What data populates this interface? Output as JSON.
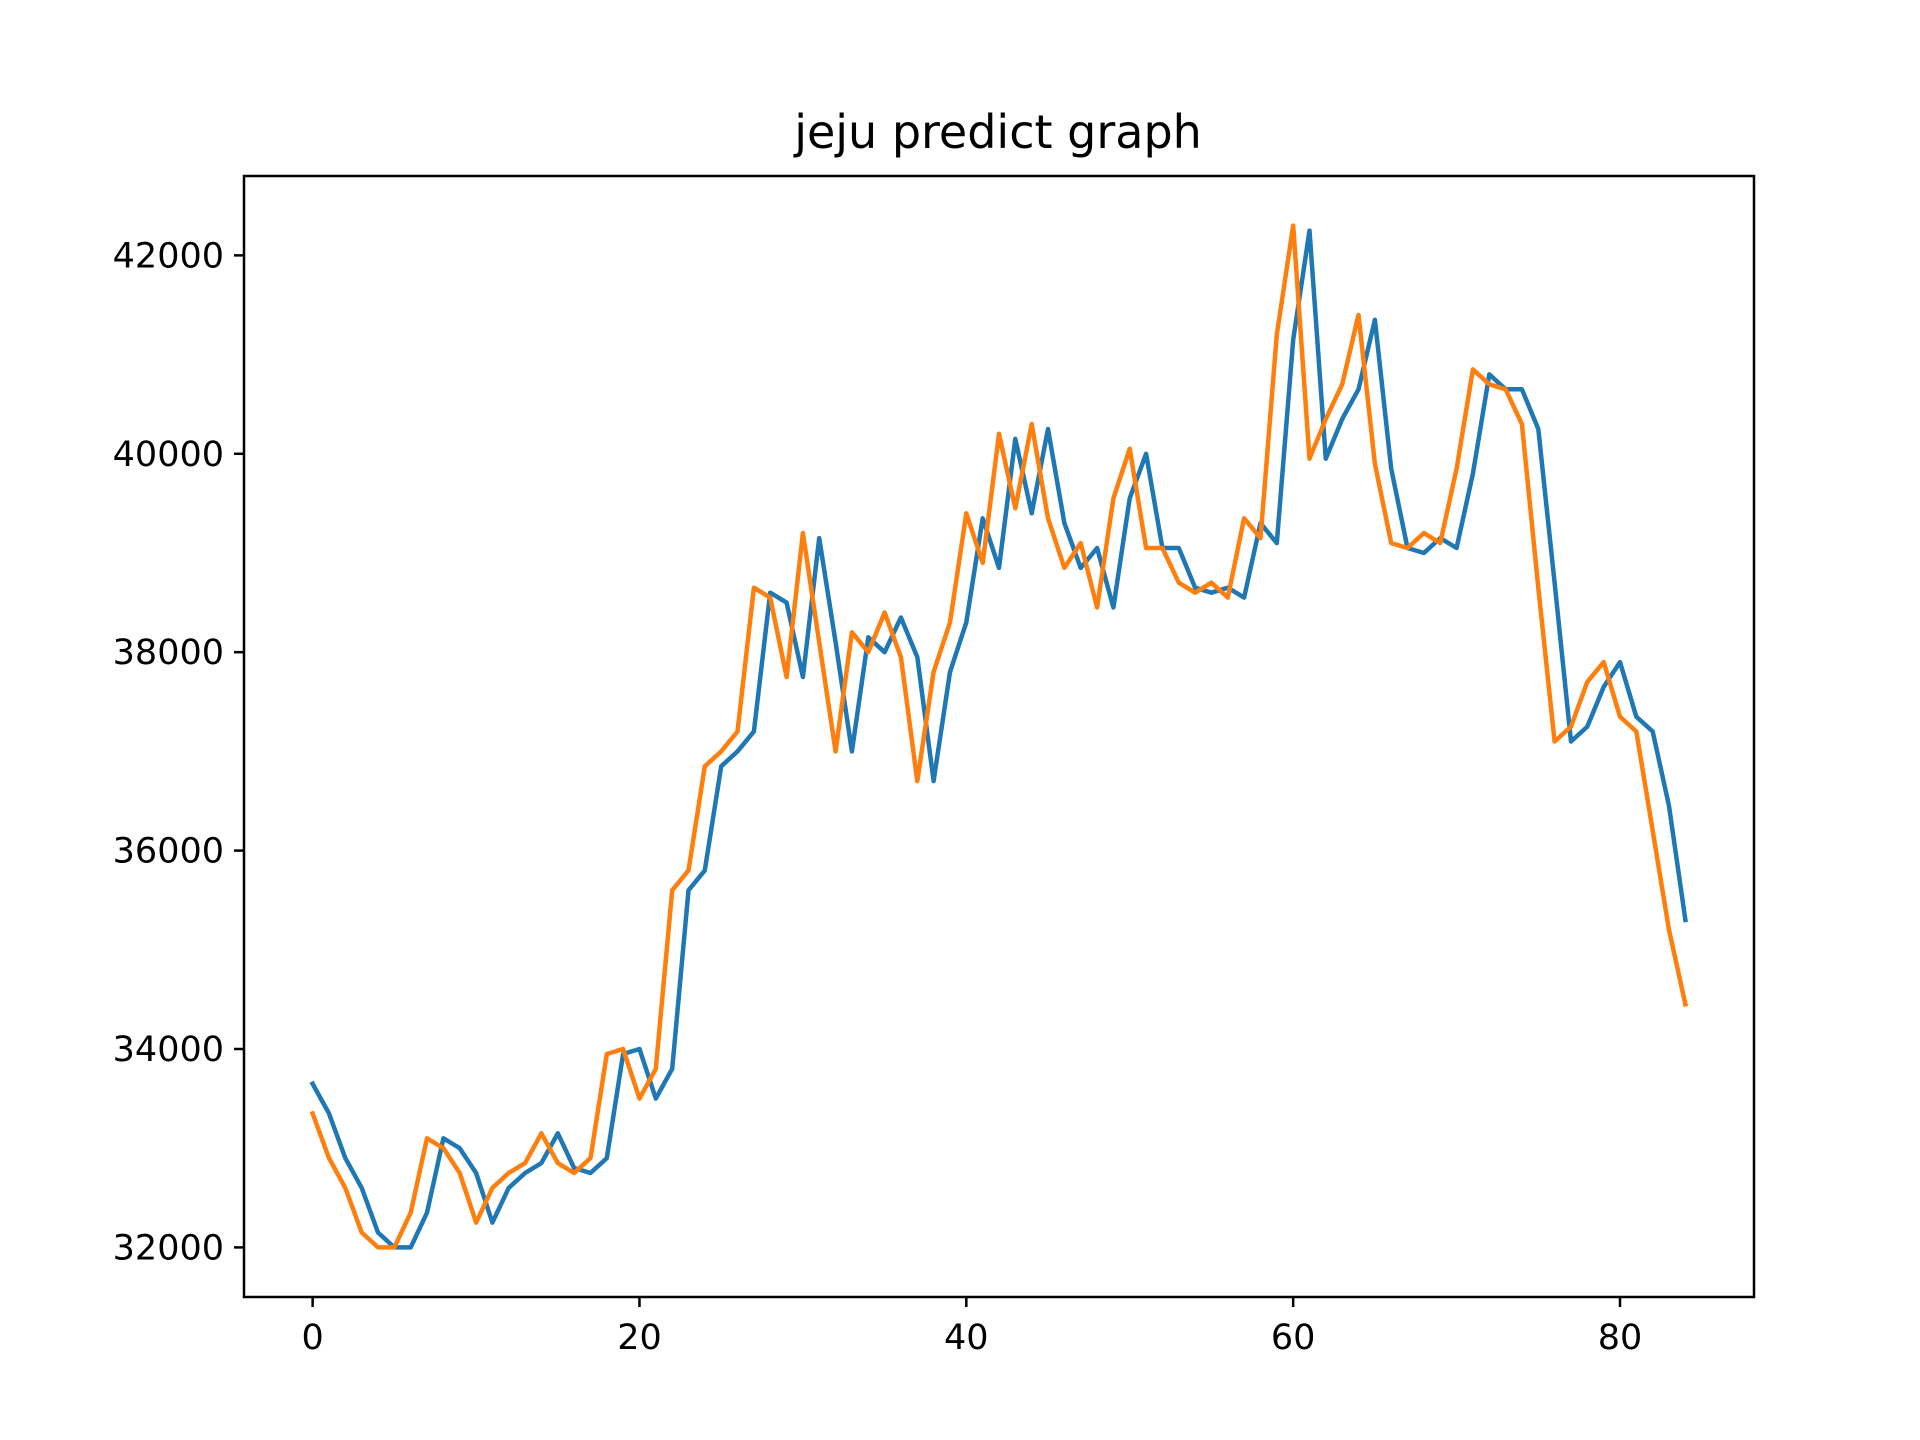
{
  "chart_data": {
    "type": "line",
    "title": "jeju predict graph",
    "xlabel": "",
    "ylabel": "",
    "xlim": [
      -4.2,
      88.2
    ],
    "ylim": [
      31500,
      42800
    ],
    "xticks": [
      0,
      20,
      40,
      60,
      80
    ],
    "yticks": [
      32000,
      34000,
      36000,
      38000,
      40000,
      42000
    ],
    "grid": false,
    "legend": "none",
    "series": [
      {
        "color": "#1f77b4",
        "values": [
          33650,
          33350,
          32900,
          32600,
          32150,
          32000,
          32000,
          32350,
          33100,
          33000,
          32750,
          32250,
          32600,
          32750,
          32850,
          33150,
          32800,
          32750,
          32900,
          33950,
          34000,
          33500,
          33800,
          35600,
          35800,
          36850,
          37000,
          37200,
          38600,
          38500,
          37750,
          39150,
          38100,
          37000,
          38150,
          38000,
          38350,
          37950,
          36700,
          37800,
          38300,
          39350,
          38850,
          40150,
          39400,
          40250,
          39300,
          38850,
          39050,
          38450,
          39550,
          40000,
          39050,
          39050,
          38650,
          38600,
          38650,
          38550,
          39300,
          39100,
          41150,
          42250,
          39950,
          40350,
          40650,
          41350,
          39850,
          39050,
          39000,
          39150,
          39050,
          39800,
          40800,
          40650,
          40650,
          40250,
          38700,
          37100,
          37250,
          37650,
          37900,
          37350,
          37200,
          36450,
          35300
        ]
      },
      {
        "color": "#ff7f0e",
        "values": [
          33350,
          32900,
          32600,
          32150,
          32000,
          32000,
          32350,
          33100,
          33000,
          32750,
          32250,
          32600,
          32750,
          32850,
          33150,
          32850,
          32750,
          32900,
          33950,
          34000,
          33500,
          33800,
          35600,
          35800,
          36850,
          37000,
          37200,
          38650,
          38550,
          37750,
          39200,
          38100,
          37000,
          38200,
          38000,
          38400,
          37950,
          36700,
          37800,
          38300,
          39400,
          38900,
          40200,
          39450,
          40300,
          39350,
          38850,
          39100,
          38450,
          39550,
          40050,
          39050,
          39050,
          38700,
          38600,
          38700,
          38550,
          39350,
          39150,
          41200,
          42300,
          39950,
          40350,
          40700,
          41400,
          39900,
          39100,
          39050,
          39200,
          39100,
          39850,
          40850,
          40700,
          40650,
          40300,
          38650,
          37100,
          37250,
          37700,
          37900,
          37350,
          37200,
          36200,
          35200,
          34450
        ]
      }
    ]
  }
}
